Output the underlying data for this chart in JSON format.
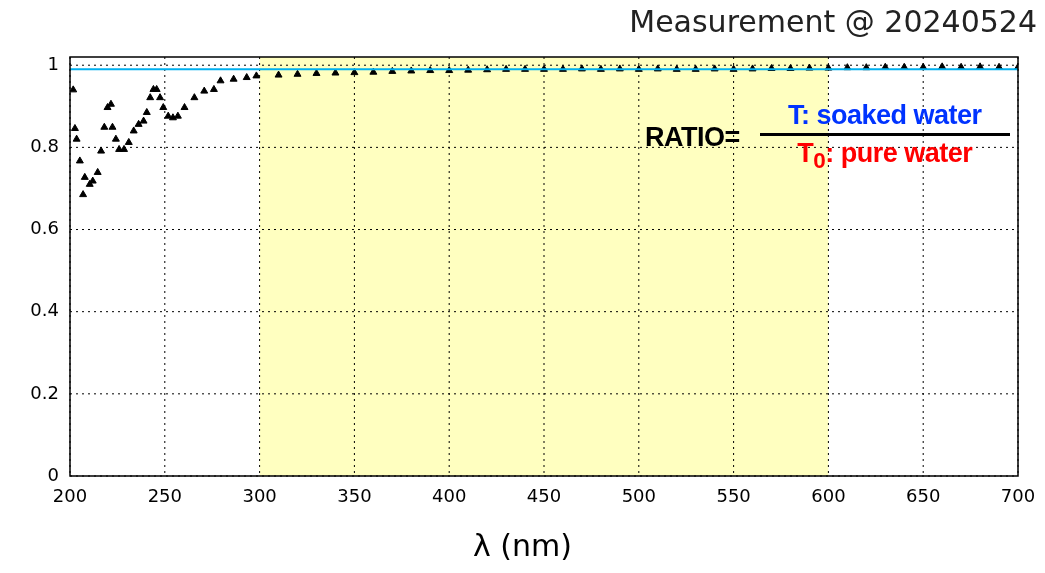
{
  "chart_data": {
    "type": "scatter",
    "title": "Measurement @ 20240524",
    "xlabel": "λ (nm)",
    "annotations": [
      "RATIO=",
      "T: soaked water",
      "T$_{0}$: pure water"
    ],
    "xlim": [
      200,
      700
    ],
    "xticks": [
      200,
      250,
      300,
      350,
      400,
      450,
      500,
      550,
      600,
      650,
      700
    ],
    "ylim": [
      0,
      1.02
    ],
    "yticks": [
      0,
      0.2,
      0.4,
      0.6,
      0.8,
      1
    ],
    "grid": true,
    "legend": false,
    "marker": "triangle",
    "bands": [
      {
        "axis": "x",
        "from": 300,
        "to": 600,
        "color": "#ffffc0"
      }
    ],
    "ref_lines": [
      {
        "axis": "y",
        "value": 0.99,
        "color": "#00b0f0"
      }
    ],
    "series": [
      {
        "color": "#000000",
        "x": [
          201.7,
          202.6,
          203.5,
          205.2,
          206.9,
          207.8,
          210.4,
          212,
          214.6,
          216.4,
          218.1,
          219.8,
          221.6,
          222.4,
          224.2,
          225.9,
          228.5,
          231,
          233.6,
          236.2,
          238.8,
          240.5,
          242.3,
          244,
          245.7,
          247.5,
          249.2,
          251.8,
          254.3,
          256.9,
          260.4,
          265.6,
          270.8,
          275.9,
          279.4,
          286.3,
          293.2,
          298.3,
          310,
          320,
          330,
          340,
          350,
          360,
          370,
          380,
          390,
          400,
          410,
          420,
          430,
          440,
          450,
          460,
          470,
          480,
          490,
          500,
          510,
          520,
          530,
          540,
          550,
          560,
          570,
          580,
          590,
          600,
          610,
          620,
          630,
          640,
          650,
          660,
          670,
          680,
          690,
          700
        ],
        "values": [
          0.94,
          0.846,
          0.82,
          0.767,
          0.685,
          0.727,
          0.71,
          0.718,
          0.739,
          0.791,
          0.849,
          0.897,
          0.905,
          0.849,
          0.82,
          0.795,
          0.795,
          0.812,
          0.84,
          0.856,
          0.864,
          0.885,
          0.921,
          0.941,
          0.941,
          0.921,
          0.897,
          0.876,
          0.872,
          0.876,
          0.897,
          0.921,
          0.937,
          0.941,
          0.962,
          0.966,
          0.97,
          0.974,
          0.976,
          0.978,
          0.98,
          0.981,
          0.982,
          0.983,
          0.985,
          0.986,
          0.987,
          0.987,
          0.988,
          0.989,
          0.99,
          0.99,
          0.99,
          0.99,
          0.991,
          0.99,
          0.991,
          0.99,
          0.991,
          0.99,
          0.99,
          0.991,
          0.99,
          0.991,
          0.992,
          0.992,
          0.993,
          0.993,
          0.994,
          0.994,
          0.995,
          0.995,
          0.995,
          0.996,
          0.995,
          0.996,
          0.995,
          0.995
        ]
      }
    ]
  }
}
